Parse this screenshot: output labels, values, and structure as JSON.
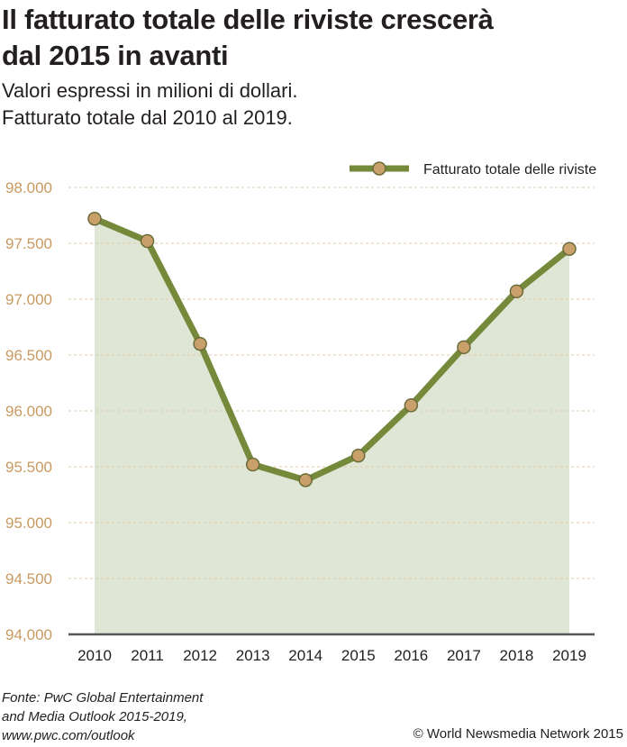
{
  "title_line1": "Il fatturato totale delle riviste crescerà",
  "title_line2": "dal 2015 in avanti",
  "subtitle_line1": "Valori espressi in milioni di dollari.",
  "subtitle_line2": "Fatturato totale dal 2010 al 2019.",
  "source_line1": "Fonte: PwC Global Entertainment",
  "source_line2": "and Media Outlook 2015-2019,",
  "source_line3": "www.pwc.com/outlook",
  "copyright": "© World Newsmedia Network 2015",
  "colors": {
    "line": "#748a3a",
    "fill": "#e0e6d6",
    "marker": "#c9a06a",
    "tick": "#c89a62",
    "grid": "#e3c9a6"
  },
  "chart_data": {
    "type": "area",
    "x": [
      2010,
      2011,
      2012,
      2013,
      2014,
      2015,
      2016,
      2017,
      2018,
      2019
    ],
    "series": [
      {
        "name": "Fatturato totale delle riviste",
        "values": [
          97720,
          97520,
          96600,
          95520,
          95380,
          95600,
          96050,
          96570,
          97070,
          97450
        ]
      }
    ],
    "xtick_labels": [
      "2010",
      "2011",
      "2012",
      "2013",
      "2014",
      "2015",
      "2016",
      "2017",
      "2018",
      "2019"
    ],
    "ytick_values": [
      94000,
      94500,
      95000,
      95500,
      96000,
      96500,
      97000,
      97500,
      98000
    ],
    "ytick_labels": [
      "94,000",
      "94.500",
      "95.000",
      "95.500",
      "96.000",
      "96.500",
      "97.000",
      "97.500",
      "98.000"
    ],
    "ylim": [
      94000,
      98000
    ],
    "grid": "horizontal dashed",
    "legend": "top-right"
  }
}
